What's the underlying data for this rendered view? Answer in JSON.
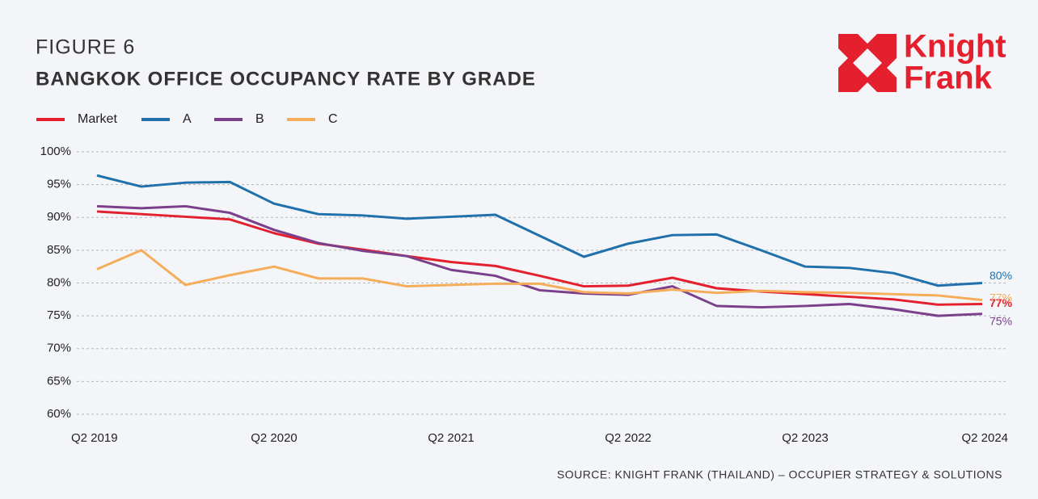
{
  "chart_data": {
    "type": "line",
    "title": "FIGURE 6",
    "subtitle": "BANGKOK OFFICE OCCUPANCY RATE BY GRADE",
    "source": "SOURCE: KNIGHT FRANK (THAILAND) – OCCUPIER STRATEGY & SOLUTIONS",
    "logo_text": [
      "Knight",
      "Frank"
    ],
    "categories": [
      "Q2 2019",
      null,
      null,
      null,
      "Q2 2020",
      null,
      null,
      null,
      "Q2 2021",
      null,
      null,
      null,
      "Q2 2022",
      null,
      null,
      null,
      "Q2 2023",
      null,
      null,
      null,
      "Q2 2024"
    ],
    "ylim": [
      60,
      100
    ],
    "yticks": [
      {
        "value": 60,
        "label": "60%"
      },
      {
        "value": 65,
        "label": "65%"
      },
      {
        "value": 70,
        "label": "70%"
      },
      {
        "value": 75,
        "label": "75%"
      },
      {
        "value": 80,
        "label": "80%"
      },
      {
        "value": 85,
        "label": "85%"
      },
      {
        "value": 90,
        "label": "90%"
      },
      {
        "value": 95,
        "label": "95%"
      },
      {
        "value": 100,
        "label": "100%"
      }
    ],
    "grid": true,
    "legend": "top-left",
    "series": [
      {
        "name": "Market",
        "color": "#e4202e",
        "values": [
          90.9,
          90.5,
          90.1,
          89.7,
          87.6,
          86.0,
          85.1,
          84.1,
          83.2,
          82.6,
          81.1,
          79.5,
          79.6,
          80.8,
          79.2,
          78.7,
          78.3,
          77.9,
          77.5,
          76.7,
          76.8
        ],
        "value_labels": [
          null,
          null,
          null,
          null,
          null,
          null,
          null,
          null,
          null,
          null,
          null,
          null,
          null,
          null,
          null,
          null,
          null,
          null,
          null,
          null,
          "77%"
        ]
      },
      {
        "name": "A",
        "color": "#1f70ab",
        "values": [
          96.4,
          94.7,
          95.3,
          95.4,
          92.1,
          90.5,
          90.3,
          89.8,
          90.1,
          90.4,
          87.2,
          84.0,
          86.0,
          87.3,
          87.4,
          85.0,
          82.5,
          82.3,
          81.5,
          79.6,
          80.0
        ],
        "value_labels": [
          null,
          null,
          null,
          null,
          null,
          null,
          null,
          null,
          null,
          null,
          null,
          null,
          null,
          null,
          null,
          null,
          null,
          null,
          null,
          null,
          "80%"
        ]
      },
      {
        "name": "B",
        "color": "#7b3f8c",
        "values": [
          91.7,
          91.4,
          91.7,
          90.7,
          88.1,
          86.1,
          84.9,
          84.1,
          82.0,
          81.1,
          78.9,
          78.4,
          78.2,
          79.5,
          76.5,
          76.3,
          76.5,
          76.8,
          76.0,
          75.0,
          75.3
        ],
        "value_labels": [
          null,
          null,
          null,
          null,
          null,
          null,
          null,
          null,
          null,
          null,
          null,
          null,
          null,
          null,
          null,
          null,
          null,
          null,
          null,
          null,
          "75%"
        ]
      },
      {
        "name": "C",
        "color": "#f5ad5a",
        "values": [
          82.1,
          85.0,
          79.7,
          81.2,
          82.5,
          80.7,
          80.7,
          79.5,
          79.7,
          79.9,
          79.9,
          78.6,
          78.4,
          79.0,
          78.5,
          78.8,
          78.6,
          78.5,
          78.3,
          78.1,
          77.4
        ],
        "value_labels": [
          null,
          null,
          null,
          null,
          null,
          null,
          null,
          null,
          null,
          null,
          null,
          null,
          null,
          null,
          null,
          null,
          null,
          null,
          null,
          null,
          "77%"
        ]
      }
    ]
  }
}
